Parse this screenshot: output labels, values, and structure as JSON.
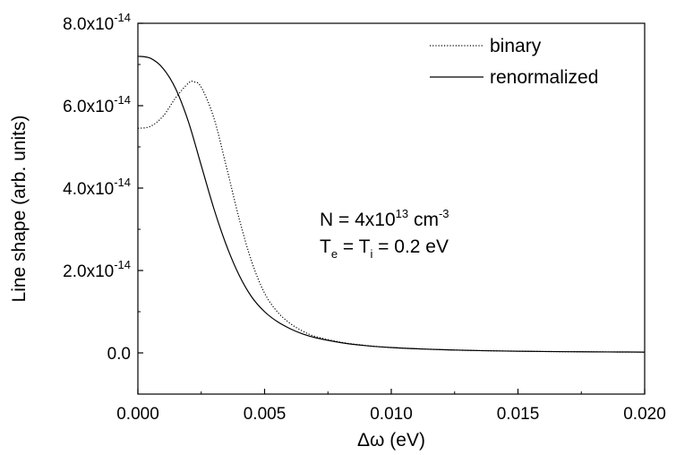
{
  "chart_data": {
    "type": "line",
    "xlabel": "Δω (eV)",
    "ylabel": "Line shape (arb. units)",
    "xlim": [
      0.0,
      0.02
    ],
    "ylim": [
      -1e-14,
      8e-14
    ],
    "x_ticks": [
      "0.000",
      "0.005",
      "0.010",
      "0.015",
      "0.020"
    ],
    "y_ticks": [
      {
        "mantissa": "0.0",
        "exp": ""
      },
      {
        "mantissa": "2.0x10",
        "exp": "-14"
      },
      {
        "mantissa": "4.0x10",
        "exp": "-14"
      },
      {
        "mantissa": "6.0x10",
        "exp": "-14"
      },
      {
        "mantissa": "8.0x10",
        "exp": "-14"
      }
    ],
    "grid": false,
    "legend_position": "top-right",
    "series": [
      {
        "name": "binary",
        "style": "dotted",
        "x": [
          0.0,
          0.0005,
          0.001,
          0.0015,
          0.002,
          0.0022,
          0.0025,
          0.003,
          0.0035,
          0.004,
          0.0045,
          0.005,
          0.0055,
          0.006,
          0.0065,
          0.007,
          0.008,
          0.009,
          0.01,
          0.011,
          0.012,
          0.013,
          0.014,
          0.015,
          0.016,
          0.017,
          0.018,
          0.019,
          0.02
        ],
        "y": [
          5.45e-14,
          5.5e-14,
          5.75e-14,
          6.2e-14,
          6.55e-14,
          6.58e-14,
          6.45e-14,
          5.7e-14,
          4.5e-14,
          3.25e-14,
          2.2e-14,
          1.45e-14,
          1e-14,
          7.2e-15,
          5.3e-15,
          4e-15,
          2.6e-15,
          1.8e-15,
          1.3e-15,
          1e-15,
          7.8e-16,
          6.2e-16,
          5e-16,
          4.1e-16,
          3.4e-16,
          2.9e-16,
          2.5e-16,
          2.2e-16,
          1.9e-16
        ]
      },
      {
        "name": "renormalized",
        "style": "solid",
        "x": [
          0.0,
          0.0005,
          0.001,
          0.0015,
          0.002,
          0.0025,
          0.003,
          0.0035,
          0.004,
          0.0045,
          0.005,
          0.0055,
          0.006,
          0.0065,
          0.007,
          0.008,
          0.009,
          0.01,
          0.011,
          0.012,
          0.013,
          0.014,
          0.015,
          0.016,
          0.017,
          0.018,
          0.019,
          0.02
        ],
        "y": [
          7.2e-14,
          7.15e-14,
          6.9e-14,
          6.4e-14,
          5.6e-14,
          4.55e-14,
          3.5e-14,
          2.6e-14,
          1.88e-14,
          1.35e-14,
          1e-14,
          7.6e-15,
          5.9e-15,
          4.6e-15,
          3.7e-15,
          2.5e-15,
          1.75e-15,
          1.3e-15,
          1e-15,
          7.8e-16,
          6.2e-16,
          5e-16,
          4.1e-16,
          3.4e-16,
          2.9e-16,
          2.5e-16,
          2.2e-16,
          1.9e-16
        ]
      }
    ],
    "annotations": {
      "density_prefix": "N = 4x10",
      "density_exp": "13",
      "density_unit": " cm",
      "density_unit_exp": "-3",
      "temp_T1": "T",
      "temp_sub1": "e",
      "temp_mid": " = T",
      "temp_sub2": "i",
      "temp_value": " = 0.2 eV"
    }
  }
}
